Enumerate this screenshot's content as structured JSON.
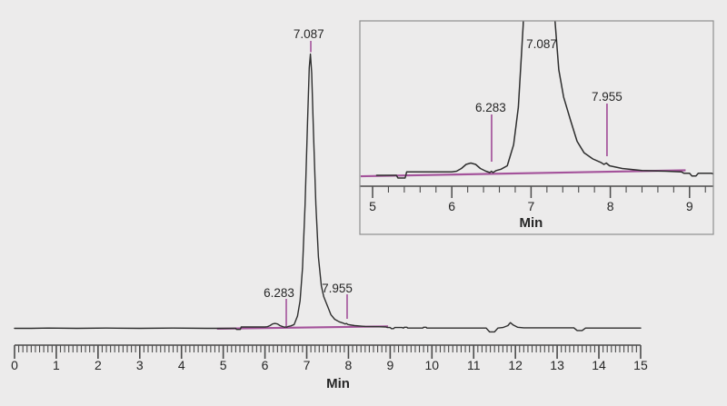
{
  "chart_data": {
    "type": "line",
    "subtype": "chromatogram-with-inset-zoom",
    "xlabel": "Min",
    "main_axis": {
      "xmin": 0,
      "xmax": 15,
      "major_tick": 1,
      "minor_tick": 0.1,
      "tick_labels": [
        "0",
        "1",
        "2",
        "3",
        "4",
        "5",
        "6",
        "7",
        "8",
        "9",
        "10",
        "11",
        "12",
        "13",
        "14",
        "15"
      ],
      "axis_label": "Min"
    },
    "inset_axis": {
      "xmin": 4.84,
      "xmax": 9.3,
      "major_tick": 1,
      "minor_tick": 0.2,
      "tick_labels": [
        "5",
        "6",
        "7",
        "8",
        "9"
      ],
      "axis_label": "Min"
    },
    "peaks": [
      {
        "retention_time_min": 6.283,
        "label": "6.283"
      },
      {
        "retention_time_min": 7.087,
        "label": "7.087"
      },
      {
        "retention_time_min": 7.955,
        "label": "7.955"
      }
    ],
    "integration_baseline": {
      "start_min": 4.85,
      "start_sig": -0.0014,
      "end_min": 8.95,
      "end_sig": 0.0073
    },
    "trace_min_signal": [
      [
        0.0,
        0.0
      ],
      [
        0.4,
        0.0
      ],
      [
        0.8,
        0.001
      ],
      [
        1.5,
        0.0
      ],
      [
        2.2,
        0.001
      ],
      [
        3.0,
        0.0
      ],
      [
        3.8,
        0.001
      ],
      [
        4.6,
        0.0
      ],
      [
        5.05,
        0.0
      ],
      [
        5.3,
        0.0
      ],
      [
        5.32,
        -0.004
      ],
      [
        5.41,
        -0.004
      ],
      [
        5.43,
        0.005
      ],
      [
        5.7,
        0.005
      ],
      [
        6.0,
        0.005
      ],
      [
        6.06,
        0.006
      ],
      [
        6.12,
        0.01
      ],
      [
        6.18,
        0.016
      ],
      [
        6.24,
        0.018
      ],
      [
        6.3,
        0.016
      ],
      [
        6.36,
        0.01
      ],
      [
        6.43,
        0.006
      ],
      [
        6.48,
        0.004
      ],
      [
        6.5,
        0.006
      ],
      [
        6.52,
        0.004
      ],
      [
        6.56,
        0.007
      ],
      [
        6.62,
        0.009
      ],
      [
        6.7,
        0.014
      ],
      [
        6.78,
        0.045
      ],
      [
        6.84,
        0.1
      ],
      [
        6.9,
        0.22
      ],
      [
        6.96,
        0.45
      ],
      [
        7.02,
        0.75
      ],
      [
        7.06,
        0.95
      ],
      [
        7.09,
        1.0
      ],
      [
        7.12,
        0.93
      ],
      [
        7.16,
        0.72
      ],
      [
        7.22,
        0.45
      ],
      [
        7.28,
        0.26
      ],
      [
        7.35,
        0.155
      ],
      [
        7.41,
        0.115
      ],
      [
        7.5,
        0.08
      ],
      [
        7.58,
        0.05
      ],
      [
        7.67,
        0.033
      ],
      [
        7.78,
        0.024
      ],
      [
        7.88,
        0.019
      ],
      [
        7.92,
        0.016
      ],
      [
        7.95,
        0.018
      ],
      [
        7.99,
        0.014
      ],
      [
        8.15,
        0.01
      ],
      [
        8.4,
        0.007
      ],
      [
        8.7,
        0.006
      ],
      [
        8.9,
        0.005
      ],
      [
        8.93,
        0.003
      ],
      [
        9.0,
        0.003
      ],
      [
        9.03,
        -0.001
      ],
      [
        9.08,
        -0.001
      ],
      [
        9.11,
        0.003
      ],
      [
        9.28,
        0.003
      ],
      [
        9.32,
        0.001
      ],
      [
        9.34,
        0.004
      ],
      [
        9.4,
        0.004
      ],
      [
        9.42,
        0.001
      ],
      [
        9.78,
        0.001
      ],
      [
        9.8,
        0.004
      ],
      [
        9.86,
        0.004
      ],
      [
        9.88,
        0.001
      ],
      [
        10.5,
        0.001
      ],
      [
        11.3,
        0.001
      ],
      [
        11.38,
        -0.013
      ],
      [
        11.5,
        -0.013
      ],
      [
        11.58,
        0.001
      ],
      [
        11.7,
        0.003
      ],
      [
        11.82,
        0.01
      ],
      [
        11.88,
        0.021
      ],
      [
        11.95,
        0.012
      ],
      [
        12.05,
        0.004
      ],
      [
        12.2,
        0.002
      ],
      [
        13.4,
        0.002
      ],
      [
        13.48,
        -0.008
      ],
      [
        13.6,
        -0.008
      ],
      [
        13.68,
        0.001
      ],
      [
        14.2,
        0.001
      ],
      [
        15.0,
        0.001
      ]
    ],
    "annotations": {
      "main": [
        {
          "text": "7.087",
          "tx": 7.05,
          "ty": 1.058,
          "line_x": 7.098,
          "line_s1": 1.048,
          "line_s2": 1.007
        },
        {
          "text": "6.283",
          "tx": 6.335,
          "ty": 0.114,
          "line_x": 6.51,
          "line_s1": 0.1076,
          "line_s2": 0.0066
        },
        {
          "text": "7.955",
          "tx": 7.729,
          "ty": 0.1308,
          "line_x": 7.968,
          "line_s1": 0.124,
          "line_s2": 0.0348
        }
      ],
      "inset": [
        {
          "text": "7.087",
          "tx": 7.133,
          "ty": 0.1867
        },
        {
          "text": "6.283",
          "tx": 6.49,
          "ty": 0.0933,
          "line_x": 6.502,
          "line_s1": 0.0893,
          "line_s2": 0.02
        },
        {
          "text": "7.955",
          "tx": 7.958,
          "ty": 0.1093,
          "line_x": 7.958,
          "line_s1": 0.1053,
          "line_s2": 0.028
        }
      ]
    },
    "colors": {
      "trace": "#2E2E2E",
      "baseline": "#A4539B",
      "marker": "#A4539B",
      "axis": "#4B4B4B",
      "text": "#262626",
      "inset_border": "#8F8F8F",
      "background": "#ECEBEB"
    }
  }
}
